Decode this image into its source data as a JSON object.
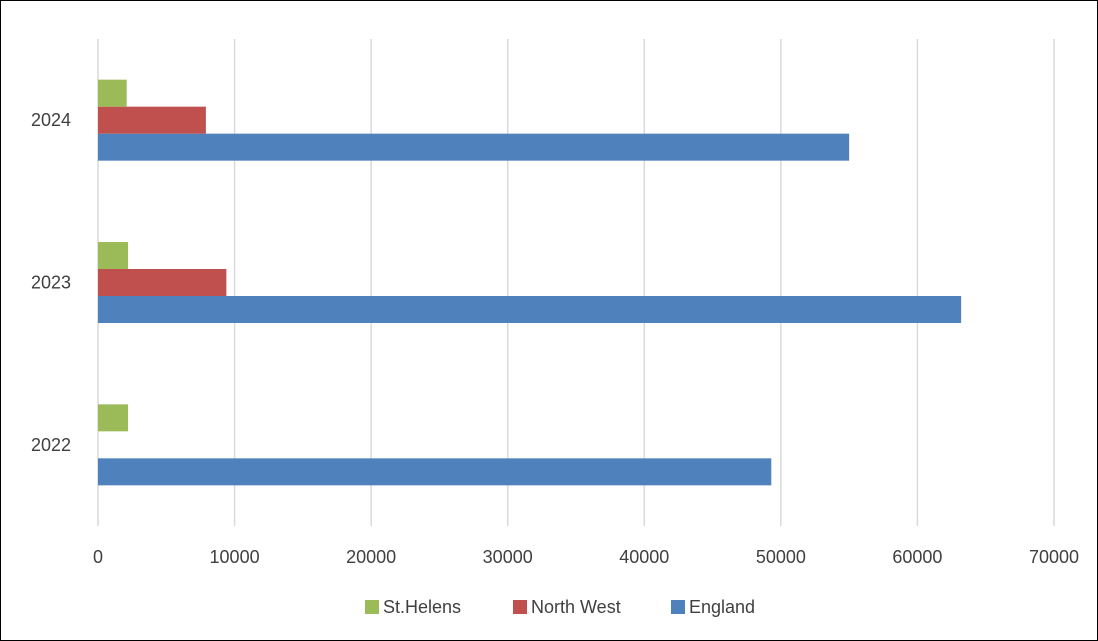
{
  "chart_data": {
    "type": "bar",
    "orientation": "horizontal",
    "categories": [
      "2022",
      "2023",
      "2024"
    ],
    "series": [
      {
        "name": "England",
        "values": [
          49300,
          63200,
          55000
        ],
        "color": "#4F81BD"
      },
      {
        "name": "North West",
        "values": [
          0,
          9400,
          7900
        ],
        "color": "#C0504D"
      },
      {
        "name": "St.Helens",
        "values": [
          2200,
          2200,
          2100
        ],
        "color": "#9BBB59"
      }
    ],
    "legend_order": [
      "St.Helens",
      "North West",
      "England"
    ],
    "xlim": [
      0,
      70000
    ],
    "xticks": [
      "0",
      "10000",
      "20000",
      "30000",
      "40000",
      "50000",
      "60000",
      "70000"
    ],
    "title": "",
    "xlabel": "",
    "ylabel": "",
    "grid": "vertical",
    "legend_position": "bottom"
  }
}
